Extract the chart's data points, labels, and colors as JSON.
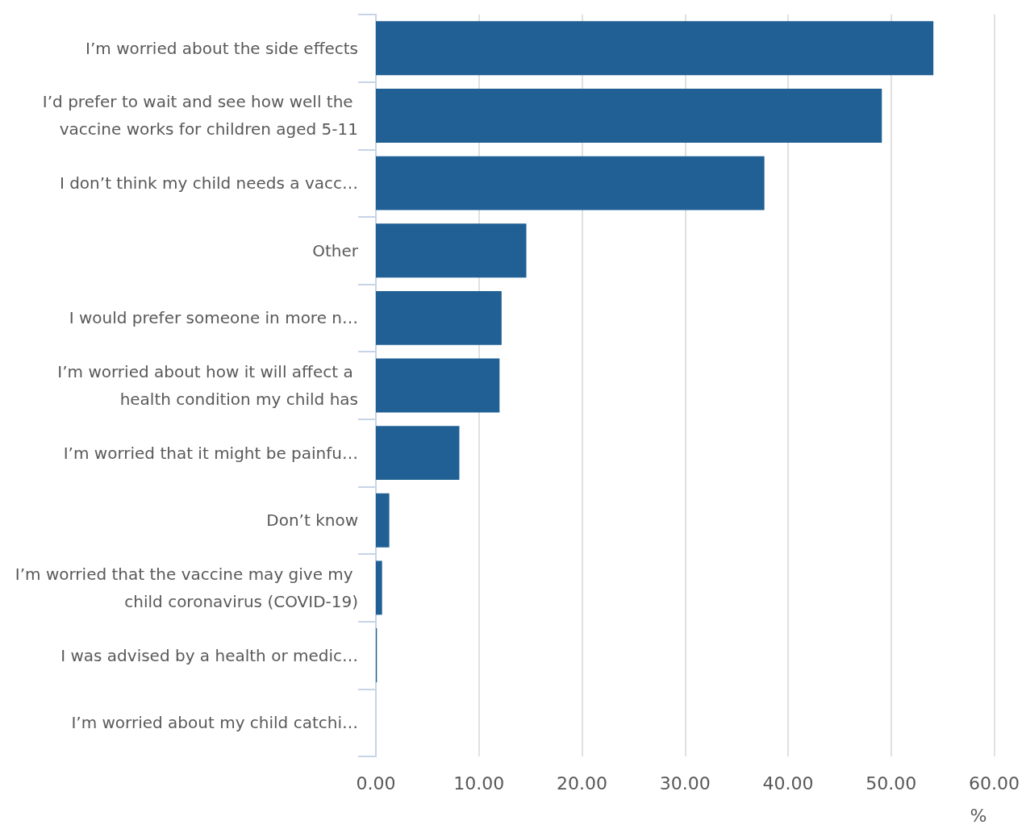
{
  "chart_data": {
    "type": "bar",
    "orientation": "horizontal",
    "xlabel": "%",
    "categories": [
      "I’m worried about the side effects",
      "I’d prefer to wait and see how well the vaccine works for children aged 5-11",
      "I don’t think my child needs a vacc…",
      "Other",
      "I would prefer someone in more n…",
      "I’m worried about how it will affect a health condition my child has",
      "I’m worried that it might be painfu…",
      "Don’t know",
      "I’m worried that the vaccine may give my child coronavirus (COVID-19)",
      "I was advised by a health or medic…",
      "I’m worried about my child catchi…"
    ],
    "values": [
      54.1,
      49.1,
      37.7,
      14.6,
      12.2,
      12.0,
      8.1,
      1.3,
      0.6,
      0.1,
      0
    ],
    "color": "#206095",
    "xlim": [
      0,
      60
    ],
    "xticks": [
      {
        "value": 0,
        "label": "0.00"
      },
      {
        "value": 10,
        "label": "10.00"
      },
      {
        "value": 20,
        "label": "20.00"
      },
      {
        "value": 30,
        "label": "30.00"
      },
      {
        "value": 40,
        "label": "40.00"
      },
      {
        "value": 50,
        "label": "50.00"
      },
      {
        "value": 60,
        "label": "60.00"
      }
    ],
    "grid": "x"
  }
}
